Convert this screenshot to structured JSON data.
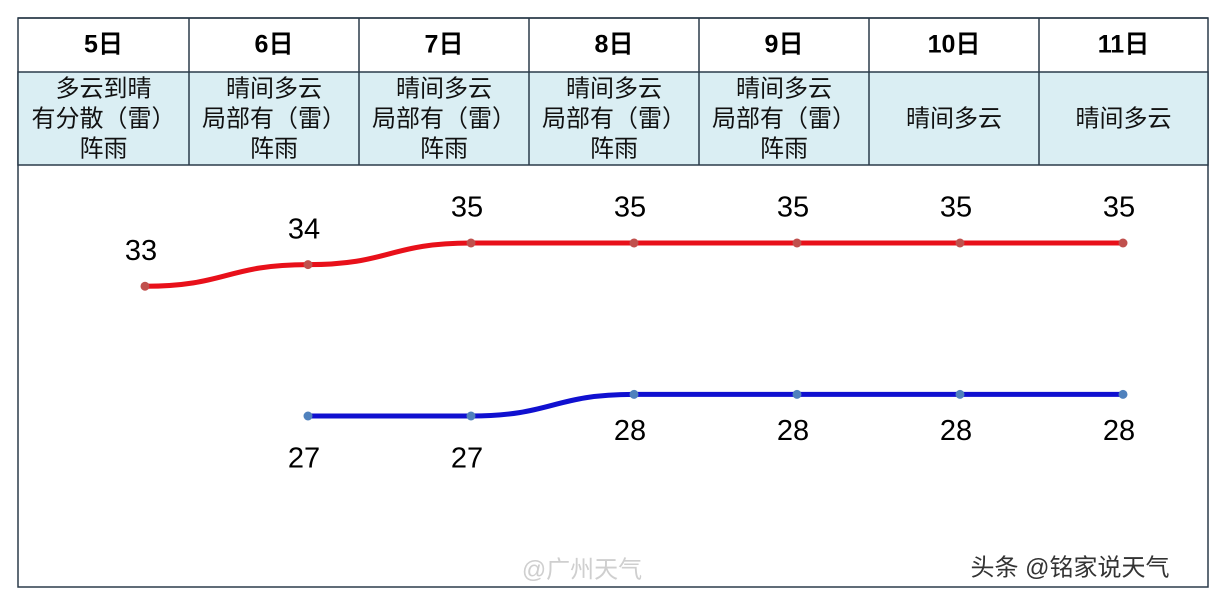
{
  "chart_data": {
    "type": "line",
    "categories": [
      "5日",
      "6日",
      "7日",
      "8日",
      "9日",
      "10日",
      "11日"
    ],
    "weather": [
      [
        "多云到晴",
        "有分散（雷）",
        "阵雨"
      ],
      [
        "晴间多云",
        "局部有（雷）",
        "阵雨"
      ],
      [
        "晴间多云",
        "局部有（雷）",
        "阵雨"
      ],
      [
        "晴间多云",
        "局部有（雷）",
        "阵雨"
      ],
      [
        "晴间多云",
        "局部有（雷）",
        "阵雨"
      ],
      [
        "晴间多云"
      ],
      [
        "晴间多云"
      ]
    ],
    "series": [
      {
        "color": "#e8101a",
        "marker": "#c0504d",
        "values": [
          33,
          34,
          35,
          35,
          35,
          35,
          35
        ]
      },
      {
        "color": "#1010d0",
        "marker": "#4f81bd",
        "values": [
          null,
          27,
          27,
          28,
          28,
          28,
          28
        ]
      }
    ],
    "watermarks": [
      "@广州天气",
      "头条 @铭家说天气"
    ]
  }
}
